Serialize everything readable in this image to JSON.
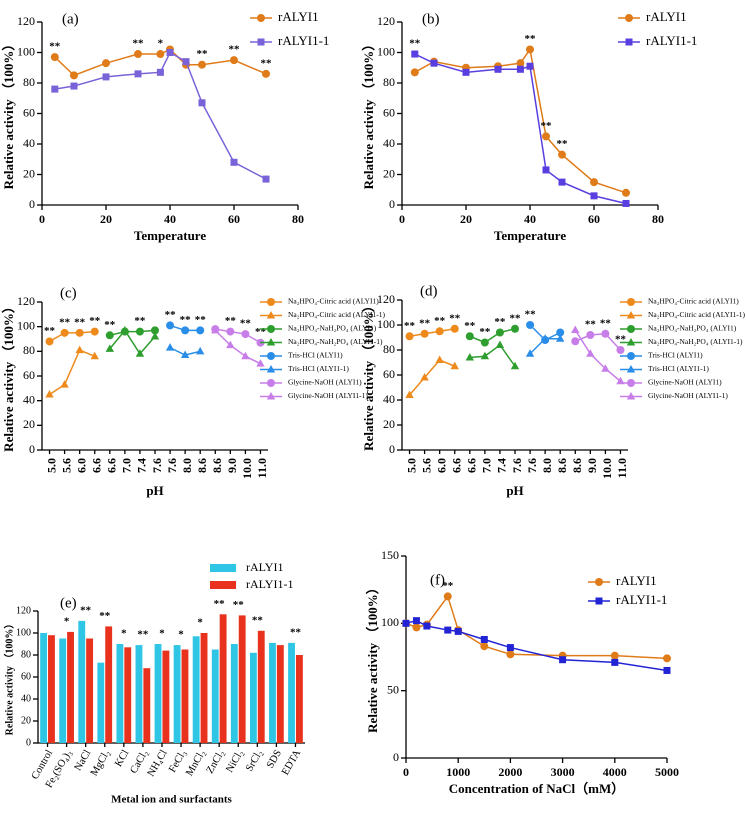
{
  "chart_data": [
    {
      "type": "line",
      "label": "(a)",
      "xlabel": "Temperature",
      "ylabel": "Relative activity （100%）",
      "x": [
        4,
        10,
        20,
        30,
        37,
        40,
        45,
        50,
        60,
        70
      ],
      "xlim": [
        0,
        80
      ],
      "xticks": [
        0,
        20,
        40,
        60,
        80
      ],
      "ylim": [
        0,
        120
      ],
      "yticks": [
        0,
        20,
        40,
        60,
        80,
        100,
        120
      ],
      "series": [
        {
          "name": "rALYI1",
          "color": "#e07b1a",
          "marker": "circle",
          "values": [
            97,
            85,
            93,
            99,
            99,
            102,
            92,
            92,
            95,
            86
          ]
        },
        {
          "name": "rALYI1-1",
          "color": "#7a62d8",
          "marker": "square",
          "values": [
            76,
            78,
            84,
            86,
            87,
            100,
            94,
            67,
            28,
            17
          ]
        }
      ],
      "annotations": [
        "**",
        null,
        null,
        "**",
        "*",
        null,
        null,
        "**",
        "**",
        "**"
      ]
    },
    {
      "type": "line",
      "label": "(b)",
      "xlabel": "Temperature",
      "ylabel": "Relative activity （100%）",
      "x": [
        4,
        10,
        20,
        30,
        37,
        40,
        45,
        50,
        60,
        70
      ],
      "xlim": [
        0,
        80
      ],
      "xticks": [
        0,
        20,
        40,
        60,
        80
      ],
      "ylim": [
        0,
        120
      ],
      "yticks": [
        0,
        20,
        40,
        60,
        80,
        100,
        120
      ],
      "series": [
        {
          "name": "rALYI1",
          "color": "#e07b1a",
          "marker": "circle",
          "values": [
            87,
            94,
            90,
            91,
            93,
            102,
            45,
            33,
            15,
            8
          ]
        },
        {
          "name": "rALYI1-1",
          "color": "#5a3fe0",
          "marker": "square",
          "values": [
            99,
            93,
            87,
            89,
            89,
            91,
            23,
            15,
            6,
            1
          ]
        }
      ],
      "annotations": [
        "**",
        null,
        null,
        null,
        null,
        "**",
        "**",
        "**",
        null,
        null
      ]
    },
    {
      "type": "line",
      "label": "(c)",
      "xlabel": "pH",
      "ylabel": "Relative activity （100%）",
      "categories": [
        "5.0",
        "5.6",
        "6.0",
        "6.6",
        "6.6",
        "7.0",
        "7.4",
        "7.6",
        "7.6",
        "8.0",
        "8.6",
        "8.6",
        "9.0",
        "10.0",
        "11.0"
      ],
      "ylim": [
        0,
        120
      ],
      "yticks": [
        0,
        20,
        40,
        60,
        80,
        100,
        120
      ],
      "series": [
        {
          "name": "Na₂HPO₄-Citric acid (ALYI1)",
          "color": "#ee8a1c",
          "marker": "circle",
          "values": [
            88,
            95,
            95,
            96,
            null,
            null,
            null,
            null,
            null,
            null,
            null,
            null,
            null,
            null,
            null
          ]
        },
        {
          "name": "Na₂HPO₄-Citric acid (ALYI1-1)",
          "color": "#ee8a1c",
          "marker": "triangle",
          "values": [
            45,
            53,
            81,
            76,
            null,
            null,
            null,
            null,
            null,
            null,
            null,
            null,
            null,
            null,
            null
          ]
        },
        {
          "name": "Na₂HPO₄-NaH₂PO₄ (ALYI1)",
          "color": "#2e9e2e",
          "marker": "circle",
          "values": [
            null,
            null,
            null,
            null,
            93,
            96,
            96,
            97,
            null,
            null,
            null,
            null,
            null,
            null,
            null
          ]
        },
        {
          "name": "Na₂HPO₄-NaH₂PO₄ (ALYI1-1)",
          "color": "#2e9e2e",
          "marker": "triangle",
          "values": [
            null,
            null,
            null,
            null,
            82,
            97,
            78,
            92,
            null,
            null,
            null,
            null,
            null,
            null,
            null
          ]
        },
        {
          "name": "Tris-HCl (ALYI1)",
          "color": "#2a8ee8",
          "marker": "circle",
          "values": [
            null,
            null,
            null,
            null,
            null,
            null,
            null,
            null,
            101,
            97,
            97,
            null,
            null,
            null,
            null
          ]
        },
        {
          "name": "Tris-HCl (ALYI1-1)",
          "color": "#2a8ee8",
          "marker": "triangle",
          "values": [
            null,
            null,
            null,
            null,
            null,
            null,
            null,
            null,
            83,
            77,
            80,
            null,
            null,
            null,
            null
          ]
        },
        {
          "name": "Glycine-NaOH (ALYI1)",
          "color": "#c77ee8",
          "marker": "circle",
          "values": [
            null,
            null,
            null,
            null,
            null,
            null,
            null,
            null,
            null,
            null,
            null,
            98,
            96,
            94,
            87
          ]
        },
        {
          "name": "Glycine-NaOH (ALYI1-1)",
          "color": "#c77ee8",
          "marker": "triangle",
          "values": [
            null,
            null,
            null,
            null,
            null,
            null,
            null,
            null,
            null,
            null,
            null,
            97,
            85,
            76,
            70
          ]
        }
      ],
      "annotations": [
        "**",
        "**",
        "**",
        "**",
        "**",
        null,
        "**",
        null,
        "**",
        "**",
        "**",
        null,
        "**",
        "**",
        "**"
      ]
    },
    {
      "type": "line",
      "label": "(d)",
      "xlabel": "pH",
      "ylabel": "Relative activity （100%）",
      "categories": [
        "5.0",
        "5.6",
        "6.0",
        "6.6",
        "6.6",
        "7.0",
        "7.4",
        "7.6",
        "7.6",
        "8.0",
        "8.6",
        "8.6",
        "9.0",
        "10.0",
        "11.0"
      ],
      "ylim": [
        0,
        120
      ],
      "yticks": [
        0,
        20,
        40,
        60,
        80,
        100,
        120
      ],
      "series": [
        {
          "name": "Na₂HPO₄-Citric acid (ALYI1)",
          "color": "#ee8a1c",
          "marker": "circle",
          "values": [
            91,
            93,
            95,
            97,
            null,
            null,
            null,
            null,
            null,
            null,
            null,
            null,
            null,
            null,
            null
          ]
        },
        {
          "name": "Na₂HPO₄-Citric acid (ALYI1-1)",
          "color": "#ee8a1c",
          "marker": "triangle",
          "values": [
            44,
            58,
            72,
            67,
            null,
            null,
            null,
            null,
            null,
            null,
            null,
            null,
            null,
            null,
            null
          ]
        },
        {
          "name": "Na₂HPO₄-NaH₂PO₄ (ALYI1)",
          "color": "#2e9e2e",
          "marker": "circle",
          "values": [
            null,
            null,
            null,
            null,
            91,
            86,
            94,
            97,
            null,
            null,
            null,
            null,
            null,
            null,
            null
          ]
        },
        {
          "name": "Na₂HPO₄-NaH₂PO₄ (ALYI1-1)",
          "color": "#2e9e2e",
          "marker": "triangle",
          "values": [
            null,
            null,
            null,
            null,
            74,
            75,
            84,
            67,
            null,
            null,
            null,
            null,
            null,
            null,
            null
          ]
        },
        {
          "name": "Tris-HCl (ALYI1)",
          "color": "#2a8ee8",
          "marker": "circle",
          "values": [
            null,
            null,
            null,
            null,
            null,
            null,
            null,
            null,
            100,
            88,
            94,
            null,
            null,
            null,
            null
          ]
        },
        {
          "name": "Tris-HCl (ALYI1-1)",
          "color": "#2a8ee8",
          "marker": "triangle",
          "values": [
            null,
            null,
            null,
            null,
            null,
            null,
            null,
            null,
            77,
            89,
            89,
            null,
            null,
            null,
            null
          ]
        },
        {
          "name": "Glycine-NaOH (ALYI1)",
          "color": "#c77ee8",
          "marker": "circle",
          "values": [
            null,
            null,
            null,
            null,
            null,
            null,
            null,
            null,
            null,
            null,
            null,
            87,
            92,
            93,
            80
          ]
        },
        {
          "name": "Glycine-NaOH (ALYI1-1)",
          "color": "#c77ee8",
          "marker": "triangle",
          "values": [
            null,
            null,
            null,
            null,
            null,
            null,
            null,
            null,
            null,
            null,
            null,
            96,
            77,
            65,
            55
          ]
        }
      ],
      "annotations": [
        "**",
        "**",
        "**",
        "**",
        "**",
        "**",
        "**",
        "**",
        "**",
        null,
        null,
        null,
        "**",
        "**",
        "**"
      ]
    },
    {
      "type": "bar",
      "label": "(e)",
      "xlabel": "Metal ion and surfactants",
      "ylabel": "Relative activity （100%）",
      "categories": [
        "Control",
        "Fe₂(SO₄)₃",
        "NaCl",
        "MgCl₂",
        "KCl",
        "CaCl₂",
        "NH₄Cl",
        "FeCl₃",
        "MnCl₂",
        "ZnCl₂",
        "NiCl₂",
        "SrCl₂",
        "SDS",
        "EDTA"
      ],
      "ylim": [
        0,
        120
      ],
      "yticks": [
        0,
        20,
        40,
        60,
        80,
        100,
        120
      ],
      "series": [
        {
          "name": "rALYI1",
          "color": "#2fc6e6",
          "values": [
            100,
            95,
            111,
            73,
            90,
            89,
            90,
            89,
            97,
            85,
            90,
            82,
            91,
            91
          ]
        },
        {
          "name": "rALYI1-1",
          "color": "#e8321e",
          "values": [
            98,
            101,
            95,
            106,
            87,
            68,
            84,
            85,
            100,
            117,
            116,
            102,
            89,
            80
          ]
        }
      ],
      "annotations": [
        null,
        "*",
        "**",
        "**",
        "*",
        "**",
        "*",
        "*",
        "*",
        "**",
        "**",
        "**",
        null,
        "**"
      ]
    },
    {
      "type": "line",
      "label": "(f)",
      "xlabel": "Concentration of NaCl（mM）",
      "ylabel": "Relative activity （100%）",
      "x": [
        0,
        200,
        400,
        800,
        1000,
        1500,
        2000,
        3000,
        4000,
        5000
      ],
      "xlim": [
        0,
        5000
      ],
      "xticks": [
        0,
        1000,
        2000,
        3000,
        4000,
        5000
      ],
      "ylim": [
        0,
        150
      ],
      "yticks": [
        0,
        50,
        100,
        150
      ],
      "series": [
        {
          "name": "rALYI1",
          "color": "#e07b1a",
          "marker": "circle",
          "values": [
            100,
            97,
            99,
            120,
            95,
            83,
            77,
            76,
            76,
            74
          ]
        },
        {
          "name": "rALYI1-1",
          "color": "#2323d6",
          "marker": "square",
          "values": [
            100,
            102,
            98,
            95,
            94,
            88,
            82,
            73,
            71,
            65
          ]
        }
      ],
      "annotations": [
        null,
        null,
        null,
        "**",
        null,
        null,
        null,
        null,
        null,
        null
      ]
    }
  ]
}
